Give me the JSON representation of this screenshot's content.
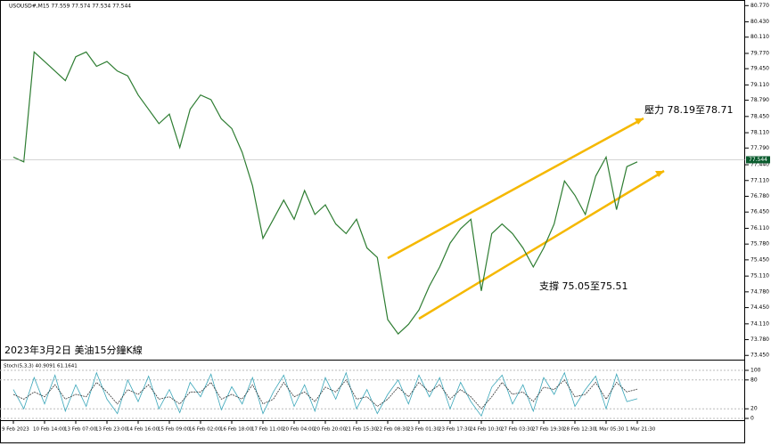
{
  "chart_data": [
    {
      "type": "line",
      "title": "USOUSD#,M15 77.559 77.574 77.534 77.544",
      "annotations": [
        "壓力 78.19至78.71",
        "支撐 75.05至75.51",
        "2023年3月2日 美油15分鐘K線"
      ],
      "last_price": 77.544,
      "categories": [
        "9 Feb 2023",
        null,
        null,
        "10 Feb 14:00",
        null,
        null,
        "13 Feb 07:00",
        null,
        null,
        "13 Feb 23:00",
        null,
        null,
        "14 Feb 16:00",
        null,
        null,
        "15 Feb 09:00",
        null,
        null,
        "16 Feb 02:00",
        null,
        null,
        "16 Feb 18:00",
        null,
        null,
        "17 Feb 11:00",
        null,
        null,
        "20 Feb 04:00",
        null,
        null,
        "20 Feb 20:00",
        null,
        null,
        "21 Feb 15:30",
        null,
        null,
        "22 Feb 08:30",
        null,
        null,
        "23 Feb 01:30",
        null,
        null,
        "23 Feb 17:30",
        null,
        null,
        "24 Feb 10:30",
        null,
        null,
        "27 Feb 03:30",
        null,
        null,
        "27 Feb 19:30",
        null,
        null,
        "28 Feb 12:30",
        null,
        null,
        "1 Mar 05:30",
        null,
        null,
        "1 Mar 21:30"
      ],
      "values": [
        77.6,
        77.5,
        79.8,
        79.6,
        79.4,
        79.2,
        79.7,
        79.8,
        79.5,
        79.6,
        79.4,
        79.3,
        78.9,
        78.6,
        78.3,
        78.5,
        77.8,
        78.6,
        78.9,
        78.8,
        78.4,
        78.2,
        77.7,
        77.0,
        75.9,
        76.3,
        76.7,
        76.3,
        76.9,
        76.4,
        76.6,
        76.2,
        76.0,
        76.3,
        75.7,
        75.5,
        74.2,
        73.9,
        74.1,
        74.4,
        74.9,
        75.3,
        75.8,
        76.1,
        76.3,
        74.8,
        76.0,
        76.2,
        76.0,
        75.7,
        75.3,
        75.7,
        76.2,
        77.1,
        76.8,
        76.4,
        77.2,
        77.6,
        76.5,
        77.4,
        77.5
      ],
      "color": "#2e7d32",
      "ylim": [
        73.38,
        80.85
      ],
      "yticks": [
        {
          "value": 73.45,
          "label": "73.450"
        },
        {
          "value": 73.78,
          "label": "73.780"
        },
        {
          "value": 74.11,
          "label": "74.110"
        },
        {
          "value": 74.45,
          "label": "74.450"
        },
        {
          "value": 74.78,
          "label": "74.780"
        },
        {
          "value": 75.11,
          "label": "75.110"
        },
        {
          "value": 75.45,
          "label": "75.450"
        },
        {
          "value": 75.78,
          "label": "75.780"
        },
        {
          "value": 76.11,
          "label": "76.110"
        },
        {
          "value": 76.45,
          "label": "76.450"
        },
        {
          "value": 76.78,
          "label": "76.780"
        },
        {
          "value": 77.11,
          "label": "77.110"
        },
        {
          "value": 77.44,
          "label": "77.440"
        },
        {
          "value": 77.79,
          "label": "77.790"
        },
        {
          "value": 78.11,
          "label": "78.110"
        },
        {
          "value": 78.45,
          "label": "78.450"
        },
        {
          "value": 78.79,
          "label": "78.790"
        },
        {
          "value": 79.11,
          "label": "79.110"
        },
        {
          "value": 79.45,
          "label": "79.450"
        },
        {
          "value": 79.77,
          "label": "79.770"
        },
        {
          "value": 80.11,
          "label": "80.110"
        },
        {
          "value": 80.43,
          "label": "80.430"
        },
        {
          "value": 80.77,
          "label": "80.770"
        }
      ]
    },
    {
      "type": "line",
      "title": "Stoch(5,3,3) 40.9091 61.1641",
      "series": [
        {
          "color": "#3aa6b9",
          "values": [
            60,
            20,
            85,
            30,
            90,
            15,
            70,
            25,
            95,
            40,
            10,
            80,
            35,
            88,
            20,
            60,
            12,
            75,
            45,
            92,
            18,
            66,
            30,
            85,
            10,
            55,
            90,
            25,
            70,
            15,
            85,
            40,
            95,
            20,
            60,
            10,
            50,
            80,
            30,
            90,
            45,
            85,
            20,
            75,
            35,
            5,
            65,
            90,
            30,
            70,
            15,
            85,
            50,
            95,
            25,
            60,
            88,
            20,
            92,
            35,
            41
          ]
        },
        {
          "color": "#333333",
          "values": [
            50,
            40,
            55,
            45,
            70,
            40,
            50,
            45,
            75,
            55,
            30,
            60,
            50,
            70,
            40,
            45,
            30,
            55,
            55,
            75,
            40,
            50,
            40,
            70,
            30,
            40,
            75,
            45,
            55,
            35,
            65,
            55,
            80,
            40,
            45,
            25,
            40,
            65,
            45,
            75,
            55,
            70,
            40,
            60,
            45,
            20,
            45,
            75,
            50,
            55,
            35,
            65,
            60,
            80,
            45,
            50,
            75,
            40,
            75,
            55,
            61
          ]
        }
      ],
      "ylim": [
        0,
        100
      ],
      "yticks": [
        0,
        20,
        80,
        100
      ]
    }
  ]
}
